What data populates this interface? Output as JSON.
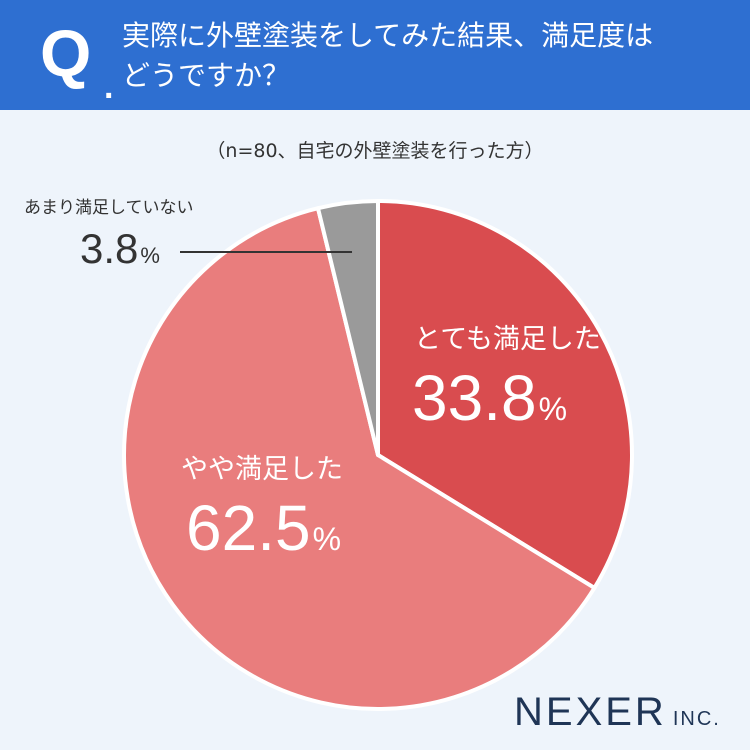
{
  "header": {
    "q_letter": "Q",
    "q_dot": ".",
    "question_line1": "実際に外壁塗装をしてみた結果、満足度は",
    "question_line2": "どうですか？"
  },
  "note": "（n=80、自宅の外壁塗装を行った方）",
  "chart_data": {
    "type": "pie",
    "title": "実際に外壁塗装をしてみた結果、満足度はどうですか？",
    "slices": [
      {
        "label": "とても満足した",
        "value": 33.8,
        "display": "33.8",
        "color": "#d94c4f"
      },
      {
        "label": "やや満足した",
        "value": 62.5,
        "display": "62.5",
        "color": "#e97d7d"
      },
      {
        "label": "あまり満足していない",
        "value": 3.8,
        "display": "3.8",
        "color": "#9a9a9a"
      }
    ],
    "unit": "%",
    "start_angle": "12 o'clock",
    "direction": "clockwise"
  },
  "logo": {
    "main": "NEXER",
    "sub": "INC."
  }
}
